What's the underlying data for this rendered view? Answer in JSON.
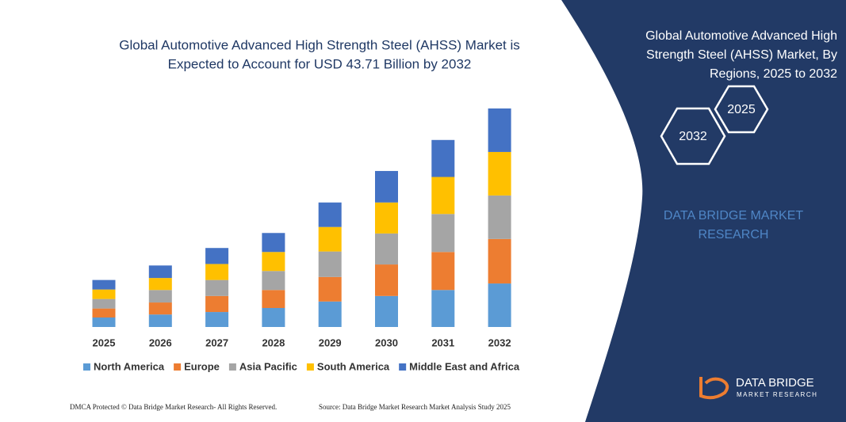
{
  "chart_data": {
    "type": "bar",
    "stacked": true,
    "title": [
      "Global Automotive Advanced High Strength Steel (AHSS) Market is",
      "Expected to Account for USD 43.71 Billion by 2032"
    ],
    "categories": [
      "2025",
      "2026",
      "2027",
      "2028",
      "2029",
      "2030",
      "2031",
      "2032"
    ],
    "series": [
      {
        "name": "North America",
        "color": "#5b9bd5",
        "values": [
          1.9,
          2.5,
          3.0,
          3.8,
          5.1,
          6.2,
          7.4,
          8.7
        ]
      },
      {
        "name": "Europe",
        "color": "#ed7d31",
        "values": [
          1.8,
          2.4,
          3.2,
          3.6,
          4.9,
          6.3,
          7.6,
          8.9
        ]
      },
      {
        "name": "Asia Pacific",
        "color": "#a5a5a5",
        "values": [
          1.9,
          2.5,
          3.2,
          3.8,
          5.1,
          6.2,
          7.6,
          8.7
        ]
      },
      {
        "name": "South America",
        "color": "#ffc000",
        "values": [
          1.9,
          2.4,
          3.2,
          3.8,
          4.9,
          6.2,
          7.4,
          8.7
        ]
      },
      {
        "name": "Middle East and Africa",
        "color": "#4472c4",
        "values": [
          1.9,
          2.5,
          3.2,
          3.8,
          4.9,
          6.3,
          7.4,
          8.7
        ]
      }
    ]
  },
  "panel": {
    "title": [
      "Global Automotive Advanced High",
      "Strength Steel (AHSS) Market, By",
      "Regions, 2025 to 2032"
    ],
    "hexagons": [
      "2025",
      "2032"
    ],
    "brand": [
      "DATA BRIDGE MARKET",
      "RESEARCH"
    ]
  },
  "logo": {
    "name": "DATA BRIDGE",
    "tagline": "MARKET RESEARCH"
  },
  "footer": {
    "left": "DMCA Protected © Data Bridge Market Research- All Rights Reserved.",
    "right": "Source: Data Bridge Market Research Market Analysis Study 2025"
  }
}
